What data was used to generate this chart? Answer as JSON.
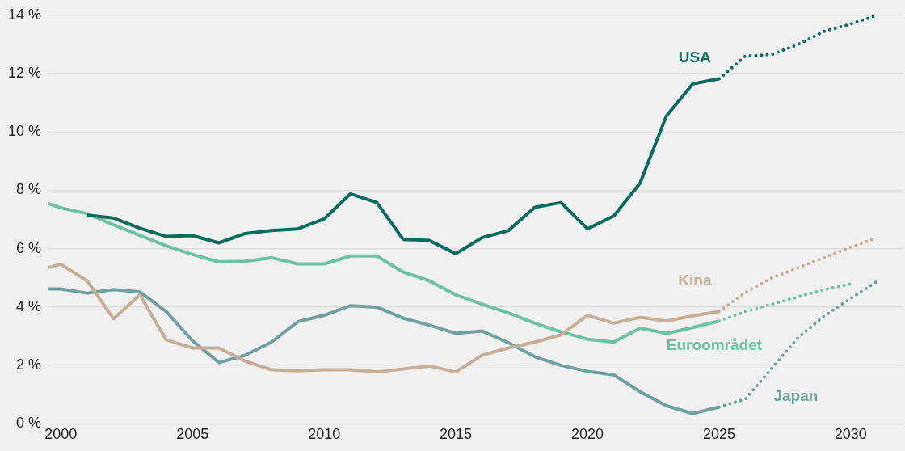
{
  "chart_data": {
    "type": "line",
    "xlim": [
      1999.5,
      2032
    ],
    "xticks": [
      2000,
      2005,
      2010,
      2015,
      2020,
      2025,
      2030
    ],
    "ylim": [
      0,
      14
    ],
    "yticks": [
      {
        "value": 0,
        "label": "0 %"
      },
      {
        "value": 2,
        "label": "2 %"
      },
      {
        "value": 4,
        "label": "4 %"
      },
      {
        "value": 6,
        "label": "6 %"
      },
      {
        "value": 8,
        "label": "8 %"
      },
      {
        "value": 10,
        "label": "10 %"
      },
      {
        "value": 12,
        "label": "12 %"
      },
      {
        "value": 14,
        "label": "14 %"
      }
    ],
    "grid": "y",
    "legend": false,
    "marker": "none",
    "series": [
      {
        "name": "USA",
        "color": "#0b6b5e",
        "line_style": "solid",
        "x": [
          2001,
          2002,
          2003,
          2004,
          2005,
          2006,
          2007,
          2008,
          2009,
          2010,
          2011,
          2012,
          2013,
          2014,
          2015,
          2016,
          2017,
          2018,
          2019,
          2020,
          2021,
          2022,
          2023,
          2024,
          2025
        ],
        "values": [
          7.15,
          7.05,
          6.7,
          6.42,
          6.45,
          6.2,
          6.52,
          6.62,
          6.68,
          7.02,
          7.88,
          7.58,
          6.32,
          6.28,
          5.83,
          6.38,
          6.62,
          7.42,
          7.58,
          6.68,
          7.12,
          8.25,
          10.55,
          11.65,
          11.82
        ]
      },
      {
        "color": "#0b6b5e",
        "line_style": "dotted",
        "x": [
          2025,
          2026,
          2027,
          2028,
          2029,
          2030,
          2031
        ],
        "values": [
          11.82,
          12.6,
          12.65,
          13.0,
          13.45,
          13.7,
          14.0
        ]
      },
      {
        "name": "Kina",
        "color": "#c4ae96",
        "line_style": "solid",
        "x": [
          1999.5,
          2000,
          2001,
          2002,
          2003,
          2004,
          2005,
          2006,
          2007,
          2008,
          2009,
          2010,
          2011,
          2012,
          2013,
          2014,
          2015,
          2016,
          2017,
          2018,
          2019,
          2020,
          2021,
          2022,
          2023,
          2024,
          2025
        ],
        "values": [
          5.35,
          5.47,
          4.9,
          3.6,
          4.42,
          2.88,
          2.6,
          2.6,
          2.15,
          1.85,
          1.82,
          1.85,
          1.85,
          1.78,
          1.88,
          1.98,
          1.78,
          2.35,
          2.6,
          2.8,
          3.05,
          3.72,
          3.45,
          3.65,
          3.52,
          3.7,
          3.85
        ]
      },
      {
        "color": "#c4ae96",
        "line_style": "dotted",
        "x": [
          2025,
          2026,
          2027,
          2028,
          2029,
          2030,
          2031
        ],
        "values": [
          3.85,
          4.5,
          5.0,
          5.35,
          5.7,
          6.05,
          6.38
        ]
      },
      {
        "name": "Euroområdet",
        "color": "#6cc0a4",
        "line_style": "solid",
        "x": [
          1999.5,
          2000,
          2001,
          2002,
          2003,
          2004,
          2005,
          2006,
          2007,
          2008,
          2009,
          2010,
          2011,
          2012,
          2013,
          2014,
          2015,
          2016,
          2017,
          2018,
          2019,
          2020,
          2021,
          2022,
          2023,
          2024,
          2025
        ],
        "values": [
          7.55,
          7.4,
          7.2,
          6.82,
          6.46,
          6.1,
          5.8,
          5.55,
          5.57,
          5.69,
          5.48,
          5.48,
          5.75,
          5.75,
          5.2,
          4.9,
          4.42,
          4.1,
          3.8,
          3.45,
          3.15,
          2.9,
          2.8,
          3.28,
          3.1,
          3.3,
          3.52
        ]
      },
      {
        "color": "#6cc0a4",
        "line_style": "dotted",
        "x": [
          2025,
          2026,
          2027,
          2028,
          2029,
          2030
        ],
        "values": [
          3.52,
          3.85,
          4.1,
          4.35,
          4.6,
          4.8
        ]
      },
      {
        "name": "Japan",
        "color": "#6fa0a0",
        "line_style": "solid",
        "x": [
          1999.5,
          2000,
          2001,
          2002,
          2003,
          2004,
          2005,
          2006,
          2007,
          2008,
          2009,
          2010,
          2011,
          2012,
          2013,
          2014,
          2015,
          2016,
          2017,
          2018,
          2019,
          2020,
          2021,
          2022,
          2023,
          2024,
          2025
        ],
        "values": [
          4.62,
          4.62,
          4.48,
          4.6,
          4.52,
          3.85,
          2.85,
          2.1,
          2.35,
          2.8,
          3.5,
          3.72,
          4.05,
          4.0,
          3.62,
          3.38,
          3.1,
          3.18,
          2.78,
          2.3,
          2.0,
          1.8,
          1.68,
          1.1,
          0.62,
          0.35,
          0.58
        ]
      },
      {
        "color": "#6fa0a0",
        "line_style": "dotted",
        "x": [
          2025,
          2026,
          2027,
          2028,
          2029,
          2030,
          2031
        ],
        "values": [
          0.58,
          0.85,
          1.9,
          2.95,
          3.7,
          4.3,
          4.88
        ]
      }
    ]
  }
}
